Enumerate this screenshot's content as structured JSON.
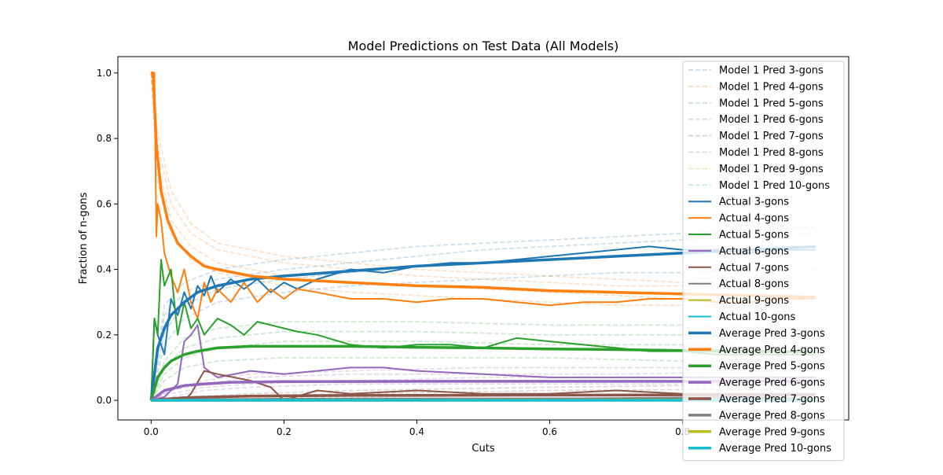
{
  "chart_data": {
    "type": "line",
    "title": "Model Predictions on Test Data (All Models)",
    "xlabel": "Cuts",
    "ylabel": "Fraction of n-gons",
    "xlim": [
      -0.05,
      1.05
    ],
    "ylim": [
      -0.06,
      1.05
    ],
    "x_ticks": [
      0.0,
      0.2,
      0.4,
      0.6,
      0.8
    ],
    "x_tick_labels": [
      "0.0",
      "0.2",
      "0.4",
      "0.6",
      "0.8"
    ],
    "y_ticks": [
      0.0,
      0.2,
      0.4,
      0.6,
      0.8,
      1.0
    ],
    "y_tick_labels": [
      "0.0",
      "0.2",
      "0.4",
      "0.6",
      "0.8",
      "1.0"
    ],
    "grid": false,
    "legend_position": "upper-right",
    "colors": {
      "3": "#1f77b4",
      "4": "#ff7f0e",
      "5": "#2ca02c",
      "6": "#9467bd",
      "7": "#8c564b",
      "8": "#7f7f7f",
      "9": "#bcbd22",
      "10": "#17becf"
    },
    "legend": [
      {
        "label": "Model 1 Pred 3-gons",
        "style": "dashed-faint",
        "color": "#1f77b4"
      },
      {
        "label": "Model 1 Pred 4-gons",
        "style": "dashed-faint",
        "color": "#ff7f0e"
      },
      {
        "label": "Model 1 Pred 5-gons",
        "style": "dashed-faint",
        "color": "#2ca02c"
      },
      {
        "label": "Model 1 Pred 6-gons",
        "style": "dashed-faint",
        "color": "#9467bd"
      },
      {
        "label": "Model 1 Pred 7-gons",
        "style": "dashed-faint",
        "color": "#8c564b"
      },
      {
        "label": "Model 1 Pred 8-gons",
        "style": "dashed-faint",
        "color": "#7f7f7f"
      },
      {
        "label": "Model 1 Pred 9-gons",
        "style": "dashed-faint",
        "color": "#bcbd22"
      },
      {
        "label": "Model 1 Pred 10-gons",
        "style": "dashed-faint",
        "color": "#17becf"
      },
      {
        "label": "Actual 3-gons",
        "style": "solid",
        "color": "#1f77b4"
      },
      {
        "label": "Actual 4-gons",
        "style": "solid",
        "color": "#ff7f0e"
      },
      {
        "label": "Actual 5-gons",
        "style": "solid",
        "color": "#2ca02c"
      },
      {
        "label": "Actual 6-gons",
        "style": "solid",
        "color": "#9467bd"
      },
      {
        "label": "Actual 7-gons",
        "style": "solid",
        "color": "#8c564b"
      },
      {
        "label": "Actual 8-gons",
        "style": "solid",
        "color": "#7f7f7f"
      },
      {
        "label": "Actual 9-gons",
        "style": "solid",
        "color": "#bcbd22"
      },
      {
        "label": "Actual 10-gons",
        "style": "solid",
        "color": "#17becf"
      },
      {
        "label": "Average Pred 3-gons",
        "style": "thick",
        "color": "#1f77b4"
      },
      {
        "label": "Average Pred 4-gons",
        "style": "thick",
        "color": "#ff7f0e"
      },
      {
        "label": "Average Pred 5-gons",
        "style": "thick",
        "color": "#2ca02c"
      },
      {
        "label": "Average Pred 6-gons",
        "style": "thick",
        "color": "#9467bd"
      },
      {
        "label": "Average Pred 7-gons",
        "style": "thick",
        "color": "#8c564b"
      },
      {
        "label": "Average Pred 8-gons",
        "style": "thick",
        "color": "#7f7f7f"
      },
      {
        "label": "Average Pred 9-gons",
        "style": "thick",
        "color": "#bcbd22"
      },
      {
        "label": "Average Pred 10-gons",
        "style": "thick",
        "color": "#17becf"
      }
    ],
    "model_preds": [
      {
        "n": "3",
        "x": [
          0,
          0.02,
          0.05,
          0.1,
          0.2,
          0.3,
          0.4,
          0.5,
          0.6,
          0.7,
          0.8,
          0.9,
          1.0
        ],
        "variants": [
          [
            0,
            0.26,
            0.33,
            0.37,
            0.4,
            0.42,
            0.44,
            0.46,
            0.47,
            0.48,
            0.49,
            0.5,
            0.51
          ],
          [
            0,
            0.21,
            0.29,
            0.34,
            0.37,
            0.39,
            0.41,
            0.42,
            0.43,
            0.44,
            0.45,
            0.46,
            0.47
          ],
          [
            0,
            0.17,
            0.25,
            0.3,
            0.33,
            0.35,
            0.36,
            0.37,
            0.38,
            0.39,
            0.39,
            0.4,
            0.4
          ],
          [
            0,
            0.29,
            0.36,
            0.4,
            0.43,
            0.45,
            0.47,
            0.48,
            0.49,
            0.5,
            0.51,
            0.52,
            0.53
          ]
        ]
      },
      {
        "n": "4",
        "x": [
          0,
          0.01,
          0.03,
          0.06,
          0.1,
          0.2,
          0.3,
          0.4,
          0.5,
          0.6,
          0.7,
          0.8,
          0.9,
          1.0
        ],
        "variants": [
          [
            1.0,
            0.72,
            0.55,
            0.47,
            0.42,
            0.38,
            0.36,
            0.35,
            0.34,
            0.33,
            0.32,
            0.31,
            0.31,
            0.3
          ],
          [
            1.0,
            0.78,
            0.6,
            0.51,
            0.46,
            0.42,
            0.4,
            0.38,
            0.37,
            0.36,
            0.35,
            0.35,
            0.34,
            0.34
          ],
          [
            1.0,
            0.66,
            0.51,
            0.43,
            0.39,
            0.35,
            0.33,
            0.32,
            0.31,
            0.3,
            0.29,
            0.29,
            0.28,
            0.28
          ],
          [
            1.0,
            0.82,
            0.64,
            0.54,
            0.48,
            0.44,
            0.42,
            0.4,
            0.39,
            0.38,
            0.37,
            0.36,
            0.36,
            0.35
          ]
        ]
      },
      {
        "n": "5",
        "x": [
          0,
          0.02,
          0.05,
          0.1,
          0.2,
          0.4,
          0.6,
          0.8,
          1.0
        ],
        "variants": [
          [
            0,
            0.1,
            0.16,
            0.19,
            0.21,
            0.21,
            0.2,
            0.2,
            0.19
          ],
          [
            0,
            0.08,
            0.13,
            0.16,
            0.18,
            0.18,
            0.17,
            0.17,
            0.16
          ],
          [
            0,
            0.12,
            0.19,
            0.22,
            0.24,
            0.24,
            0.23,
            0.23,
            0.22
          ],
          [
            0,
            0.06,
            0.1,
            0.12,
            0.13,
            0.13,
            0.13,
            0.12,
            0.12
          ]
        ]
      },
      {
        "n": "6",
        "x": [
          0,
          0.03,
          0.08,
          0.15,
          0.3,
          0.5,
          0.7,
          1.0
        ],
        "variants": [
          [
            0,
            0.03,
            0.06,
            0.08,
            0.09,
            0.1,
            0.1,
            0.1
          ],
          [
            0,
            0.02,
            0.04,
            0.05,
            0.06,
            0.07,
            0.07,
            0.07
          ],
          [
            0,
            0.01,
            0.03,
            0.04,
            0.05,
            0.05,
            0.05,
            0.05
          ],
          [
            0,
            0.03,
            0.05,
            0.07,
            0.08,
            0.08,
            0.08,
            0.09
          ]
        ]
      },
      {
        "n": "7",
        "x": [
          0,
          0.05,
          0.15,
          0.3,
          0.6,
          1.0
        ],
        "variants": [
          [
            0,
            0.01,
            0.02,
            0.03,
            0.04,
            0.05
          ],
          [
            0,
            0.005,
            0.015,
            0.02,
            0.03,
            0.035
          ]
        ]
      },
      {
        "n": "8",
        "x": [
          0,
          0.1,
          0.3,
          0.6,
          1.0
        ],
        "variants": [
          [
            0,
            0.005,
            0.01,
            0.015,
            0.02
          ]
        ]
      }
    ],
    "actual": [
      {
        "n": "3",
        "x": [
          0,
          0.005,
          0.01,
          0.02,
          0.03,
          0.04,
          0.05,
          0.06,
          0.07,
          0.08,
          0.09,
          0.1,
          0.12,
          0.14,
          0.16,
          0.18,
          0.2,
          0.22,
          0.25,
          0.3,
          0.35,
          0.4,
          0.45,
          0.5,
          0.55,
          0.6,
          0.65,
          0.7,
          0.75,
          0.8,
          0.85,
          0.9,
          0.95,
          1.0
        ],
        "y": [
          0,
          0.25,
          0.2,
          0.14,
          0.31,
          0.26,
          0.33,
          0.28,
          0.35,
          0.32,
          0.38,
          0.33,
          0.37,
          0.34,
          0.37,
          0.33,
          0.36,
          0.34,
          0.37,
          0.4,
          0.39,
          0.41,
          0.42,
          0.42,
          0.43,
          0.44,
          0.45,
          0.46,
          0.47,
          0.46,
          0.46,
          0.45,
          0.46,
          0.46
        ]
      },
      {
        "n": "4",
        "x": [
          0,
          0.005,
          0.008,
          0.01,
          0.015,
          0.02,
          0.03,
          0.04,
          0.05,
          0.06,
          0.07,
          0.08,
          0.09,
          0.1,
          0.12,
          0.14,
          0.16,
          0.18,
          0.2,
          0.22,
          0.25,
          0.3,
          0.35,
          0.4,
          0.45,
          0.5,
          0.55,
          0.6,
          0.65,
          0.7,
          0.75,
          0.8,
          0.85,
          0.9,
          0.95,
          1.0
        ],
        "y": [
          1.0,
          1.0,
          0.5,
          0.6,
          0.55,
          0.45,
          0.38,
          0.33,
          0.4,
          0.3,
          0.25,
          0.36,
          0.3,
          0.34,
          0.3,
          0.36,
          0.3,
          0.34,
          0.31,
          0.34,
          0.33,
          0.31,
          0.31,
          0.3,
          0.31,
          0.31,
          0.3,
          0.29,
          0.3,
          0.3,
          0.31,
          0.31,
          0.3,
          0.3,
          0.31,
          0.31
        ]
      },
      {
        "n": "5",
        "x": [
          0,
          0.005,
          0.01,
          0.015,
          0.02,
          0.03,
          0.04,
          0.05,
          0.06,
          0.07,
          0.08,
          0.1,
          0.12,
          0.14,
          0.16,
          0.18,
          0.2,
          0.22,
          0.25,
          0.3,
          0.35,
          0.4,
          0.45,
          0.5,
          0.55,
          0.6,
          0.65,
          0.7,
          0.75,
          0.8,
          0.85,
          0.9,
          0.95,
          1.0
        ],
        "y": [
          0,
          0.25,
          0.2,
          0.43,
          0.35,
          0.4,
          0.2,
          0.3,
          0.22,
          0.25,
          0.2,
          0.25,
          0.23,
          0.2,
          0.24,
          0.23,
          0.22,
          0.21,
          0.2,
          0.17,
          0.16,
          0.17,
          0.17,
          0.16,
          0.19,
          0.18,
          0.17,
          0.16,
          0.15,
          0.15,
          0.14,
          0.14,
          0.14,
          0.14
        ]
      },
      {
        "n": "6",
        "x": [
          0,
          0.02,
          0.03,
          0.04,
          0.05,
          0.06,
          0.07,
          0.08,
          0.1,
          0.15,
          0.2,
          0.25,
          0.3,
          0.35,
          0.4,
          0.5,
          0.6,
          0.7,
          0.8,
          0.9,
          1.0
        ],
        "y": [
          0,
          0.01,
          0.03,
          0.05,
          0.18,
          0.2,
          0.23,
          0.1,
          0.07,
          0.09,
          0.08,
          0.09,
          0.1,
          0.1,
          0.09,
          0.08,
          0.07,
          0.07,
          0.07,
          0.07,
          0.07
        ]
      },
      {
        "n": "7",
        "x": [
          0,
          0.05,
          0.06,
          0.08,
          0.1,
          0.15,
          0.18,
          0.2,
          0.25,
          0.3,
          0.4,
          0.5,
          0.6,
          0.7,
          0.8,
          0.9,
          1.0
        ],
        "y": [
          0,
          0.0,
          0.02,
          0.09,
          0.08,
          0.06,
          0.04,
          0.0,
          0.03,
          0.02,
          0.03,
          0.02,
          0.02,
          0.03,
          0.02,
          0.02,
          0.02
        ]
      },
      {
        "n": "8",
        "x": [
          0,
          0.3,
          0.6,
          0.9,
          1.0
        ],
        "y": [
          0,
          0.005,
          0.005,
          0.01,
          0.005
        ]
      },
      {
        "n": "9",
        "x": [
          0,
          1.0
        ],
        "y": [
          0,
          0
        ]
      },
      {
        "n": "10",
        "x": [
          0,
          1.0
        ],
        "y": [
          0,
          0
        ]
      }
    ],
    "average_pred": [
      {
        "n": "3",
        "x": [
          0,
          0.01,
          0.02,
          0.03,
          0.05,
          0.07,
          0.1,
          0.15,
          0.2,
          0.3,
          0.4,
          0.5,
          0.6,
          0.7,
          0.8,
          0.9,
          1.0
        ],
        "y": [
          0,
          0.16,
          0.22,
          0.26,
          0.3,
          0.33,
          0.35,
          0.37,
          0.38,
          0.395,
          0.41,
          0.42,
          0.43,
          0.44,
          0.45,
          0.46,
          0.47
        ]
      },
      {
        "n": "4",
        "x": [
          0,
          0.003,
          0.008,
          0.015,
          0.025,
          0.04,
          0.06,
          0.08,
          0.1,
          0.15,
          0.2,
          0.3,
          0.4,
          0.5,
          0.6,
          0.7,
          0.8,
          0.9,
          1.0
        ],
        "y": [
          1.0,
          1.0,
          0.78,
          0.64,
          0.55,
          0.48,
          0.44,
          0.41,
          0.4,
          0.38,
          0.37,
          0.36,
          0.35,
          0.345,
          0.335,
          0.33,
          0.325,
          0.32,
          0.315
        ]
      },
      {
        "n": "5",
        "x": [
          0,
          0.01,
          0.02,
          0.03,
          0.05,
          0.07,
          0.1,
          0.15,
          0.2,
          0.3,
          0.4,
          0.5,
          0.6,
          0.7,
          0.8,
          0.9,
          1.0
        ],
        "y": [
          0,
          0.07,
          0.1,
          0.12,
          0.14,
          0.15,
          0.16,
          0.165,
          0.165,
          0.165,
          0.162,
          0.16,
          0.157,
          0.155,
          0.152,
          0.15,
          0.148
        ]
      },
      {
        "n": "6",
        "x": [
          0,
          0.02,
          0.05,
          0.08,
          0.12,
          0.2,
          0.4,
          0.6,
          0.8,
          1.0
        ],
        "y": [
          0,
          0.03,
          0.045,
          0.05,
          0.055,
          0.057,
          0.058,
          0.058,
          0.058,
          0.058
        ]
      },
      {
        "n": "7",
        "x": [
          0,
          0.05,
          0.15,
          0.3,
          0.6,
          1.0
        ],
        "y": [
          0,
          0.008,
          0.013,
          0.015,
          0.016,
          0.017
        ]
      },
      {
        "n": "8",
        "x": [
          0,
          0.2,
          0.6,
          1.0
        ],
        "y": [
          0,
          0.003,
          0.004,
          0.004
        ]
      },
      {
        "n": "9",
        "x": [
          0,
          1.0
        ],
        "y": [
          0,
          0.001
        ]
      },
      {
        "n": "10",
        "x": [
          0,
          1.0
        ],
        "y": [
          0,
          0
        ]
      }
    ]
  }
}
